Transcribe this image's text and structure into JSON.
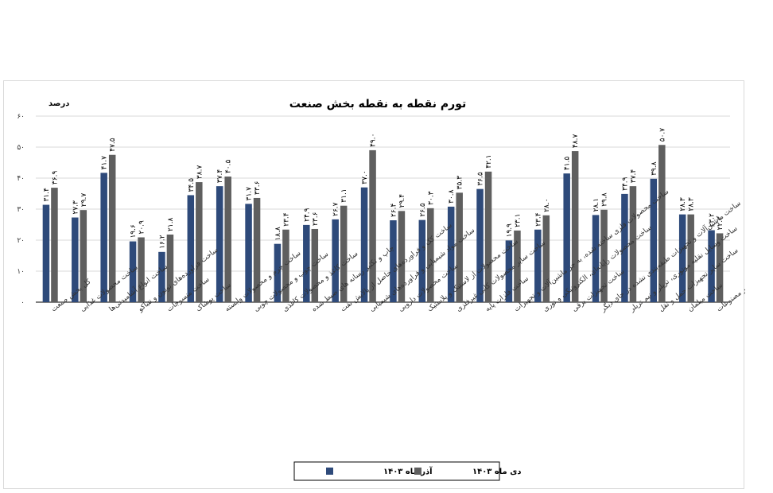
{
  "chart_data": {
    "type": "bar",
    "title": "تورم نقطه به نقطه بخش صنعت",
    "ylabel": "درصد",
    "ylim": [
      0,
      60
    ],
    "yticks": [
      "۰",
      "۱۰",
      "۲۰",
      "۳۰",
      "۴۰",
      "۵۰",
      "۶۰"
    ],
    "grid": true,
    "legend_position": "bottom",
    "categories": [
      "کل بخش صنعت",
      "ساخت محصولات غذایی",
      "ساخت انواع آشامیدنی‌ها",
      "ساخت فراورده‌های توتون و تنباکو",
      "ساخت منسوجات",
      "ساخت پوشاک",
      "ساخت چرم و محصولات وابسته",
      "ساخت چوب و محصولات چوبی",
      "ساخت کاغذ و محصولات کاغذی",
      "چاپ و تکثیر رسانه های ضبط شده",
      "ساخت کک و فراورده‌های حاصل از پالایش نفت",
      "ساخت مواد شیمیایی و فراورده‌های شیمیایی",
      "ساخت محصولات دارویی",
      "ساخت محصولات از لاستیک و پلاستیک",
      "ساخت سایر محصولات کانی غیرفلزی",
      "ساخت فلزات پایه",
      "ساخت محصولات فلزی ساخته شده، به جز ماشین‌آلات و تجهیزات",
      "ساخت محصولات رایانه‌ای، الکترونیکی و نوری",
      "ساخت تجهیزات برقی",
      "ساخت ماشین‌آلات و تجهیزات طبقه‌بندی نشده در جای دیگر",
      "ساخت وسایل نقلیه موتوری، تریلر و نیم تریلر",
      "ساخت سایر تجهیزات حمل و نقل",
      "ساخت مبلمان",
      "ساخت سایر مصنوعات"
    ],
    "series": [
      {
        "name": "آذر ماه ۱۴۰۳",
        "color": "#2e4a7a",
        "values": [
          31.4,
          27.3,
          41.7,
          19.6,
          16.2,
          34.5,
          37.4,
          31.7,
          18.8,
          24.9,
          26.7,
          37.0,
          26.4,
          26.5,
          30.8,
          36.5,
          19.9,
          23.4,
          41.5,
          28.1,
          34.9,
          39.8,
          28.3,
          23.2
        ],
        "labels": [
          "۳۱.۴",
          "۲۷.۳",
          "۴۱.۷",
          "۱۹.۶",
          "۱۶.۲",
          "۳۴.۵",
          "۳۷.۴",
          "۳۱.۷",
          "۱۸.۸",
          "۲۴.۹",
          "۲۶.۷",
          "۳۷.۰",
          "۲۶.۴",
          "۲۶.۵",
          "۳۰.۸",
          "۳۶.۵",
          "۱۹.۹",
          "۲۳.۴",
          "۴۱.۵",
          "۲۸.۱",
          "۳۴.۹",
          "۳۹.۸",
          "۲۸.۳",
          "۲۳.۲"
        ]
      },
      {
        "name": "دی ماه ۱۴۰۳",
        "color": "#5f5f5f",
        "values": [
          36.9,
          29.7,
          47.5,
          20.9,
          21.8,
          38.7,
          40.5,
          33.6,
          23.4,
          23.6,
          31.1,
          49.0,
          29.4,
          30.3,
          35.3,
          42.1,
          23.1,
          28.0,
          48.7,
          29.8,
          37.4,
          50.7,
          28.3,
          22.2
        ],
        "labels": [
          "۳۶.۹",
          "۲۹.۷",
          "۴۷.۵",
          "۲۰.۹",
          "۲۱.۸",
          "۳۸.۷",
          "۴۰.۵",
          "۳۳.۶",
          "۲۳.۴",
          "۲۳.۶",
          "۳۱.۱",
          "۴۹.۰",
          "۲۹.۴",
          "۳۰.۳",
          "۳۵.۳",
          "۴۲.۱",
          "۲۳.۱",
          "۲۸.۰",
          "۴۸.۷",
          "۲۹.۸",
          "۳۷.۴",
          "۵۰.۷",
          "۲۸.۳",
          "۲۲.۲"
        ]
      }
    ]
  }
}
